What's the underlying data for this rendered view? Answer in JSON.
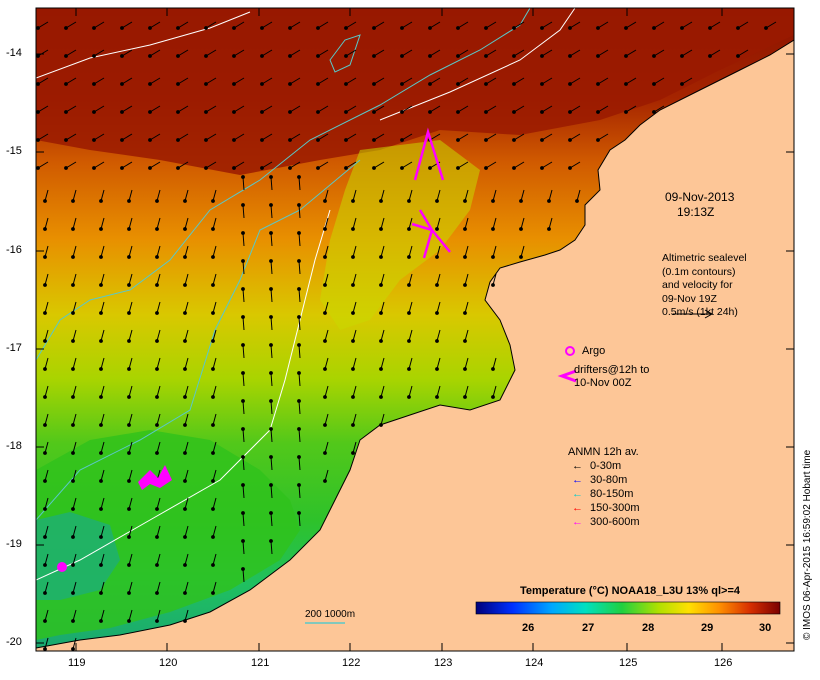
{
  "map": {
    "date": "09-Nov-2013",
    "time": "19:13Z",
    "lat_ticks": [
      "-14",
      "-15",
      "-16",
      "-17",
      "-18",
      "-19",
      "-20"
    ],
    "lon_ticks": [
      "119",
      "120",
      "121",
      "122",
      "123",
      "124",
      "125",
      "126"
    ]
  },
  "altimetry_note": [
    "Altimetric sealevel",
    "(0.1m contours)",
    "and velocity for",
    "09-Nov 19Z",
    "0.5m/s (1kt 24h)"
  ],
  "argo_label": "Argo",
  "drifters_label": [
    "drifters@12h to",
    "10-Nov 00Z"
  ],
  "anmn": {
    "title": "ANMN 12h av.",
    "entries": [
      {
        "label": "0-30m",
        "color": "#000000"
      },
      {
        "label": "30-80m",
        "color": "#0000ff"
      },
      {
        "label": "80-150m",
        "color": "#00cccc"
      },
      {
        "label": "150-300m",
        "color": "#ff0000"
      },
      {
        "label": "300-600m",
        "color": "#ff00ff"
      }
    ]
  },
  "isobath_label": "200  1000m",
  "colorbar": {
    "title": "Temperature (°C) NOAA18_L3U 13% ql>=4",
    "ticks": [
      "26",
      "27",
      "28",
      "29",
      "30"
    ]
  },
  "credit": "© IMOS 06-Apr-2015 16:59:02 Hobart time",
  "colors": {
    "land": "#fdc697",
    "warm": "#a51f00",
    "cool": "#39c51e",
    "argo": "#ff00ff"
  }
}
